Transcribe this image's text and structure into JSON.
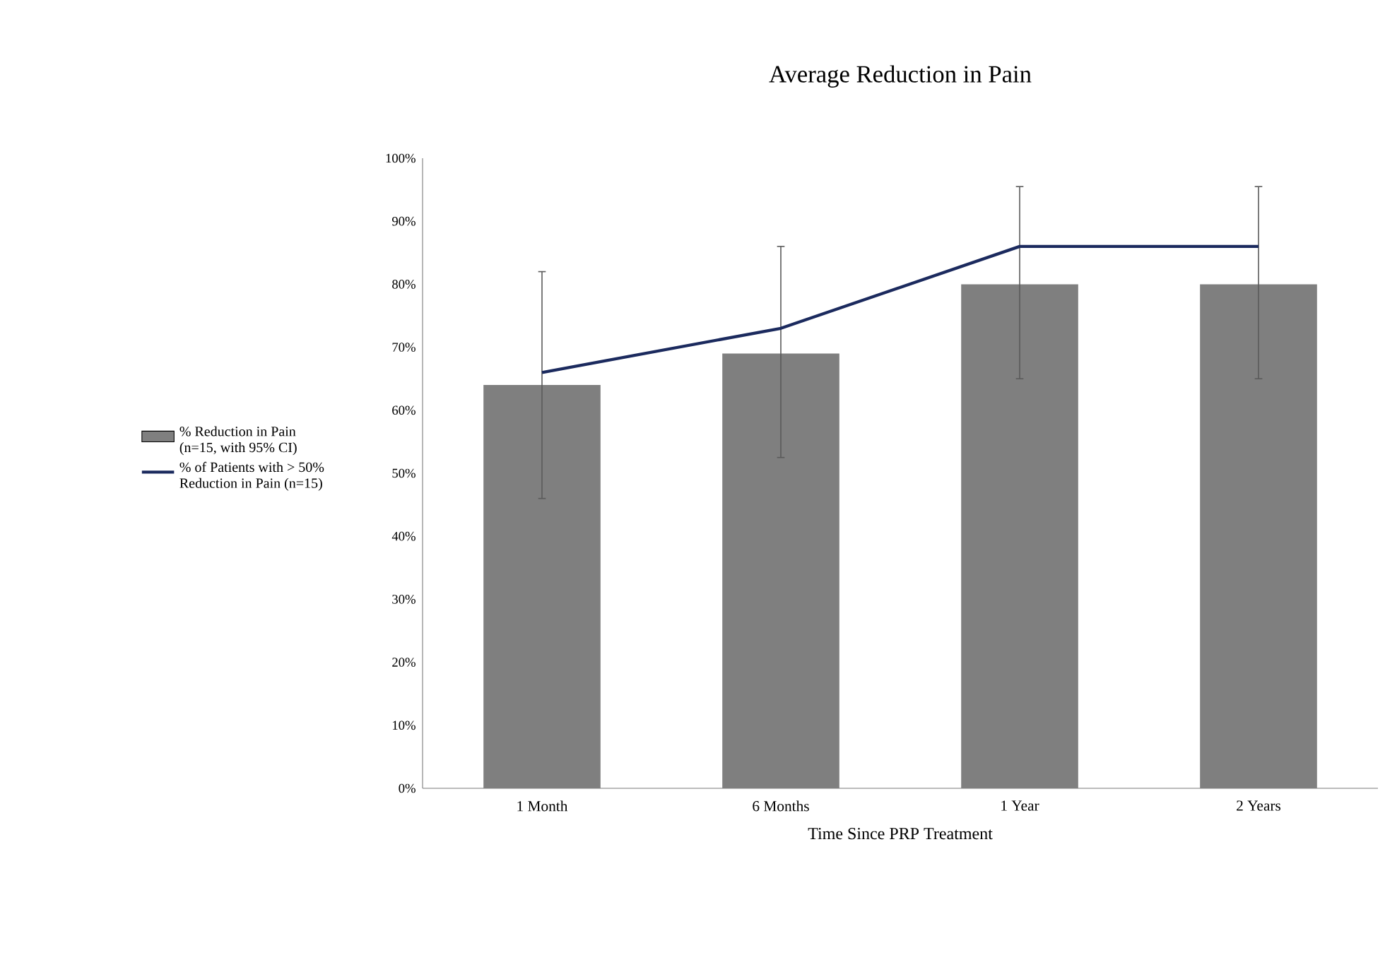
{
  "chart_data": {
    "type": "bar",
    "title": "Average Reduction in Pain",
    "xlabel": "Time Since PRP Treatment",
    "categories": [
      "1 Month",
      "6 Months",
      "1 Year",
      "2 Years"
    ],
    "series": [
      {
        "name": "% Reduction in Pain (n=15, with 95% CI)",
        "type": "bar",
        "color": "#7f7f7f",
        "values": [
          64,
          69,
          80,
          80
        ],
        "errors": [
          [
            46,
            82
          ],
          [
            52.5,
            86
          ],
          [
            65,
            95.5
          ],
          [
            65,
            95.5
          ]
        ]
      },
      {
        "name": "% of Patients with > 50% Reduction in Pain (n=15)",
        "type": "line",
        "color": "#1b2a5e",
        "values": [
          66,
          73,
          86,
          86
        ]
      }
    ],
    "ylim": [
      0,
      100
    ],
    "yticks": [
      {
        "value": 0,
        "label": "0%"
      },
      {
        "value": 10,
        "label": "10%"
      },
      {
        "value": 20,
        "label": "20%"
      },
      {
        "value": 30,
        "label": "30%"
      },
      {
        "value": 40,
        "label": "40%"
      },
      {
        "value": 50,
        "label": "50%"
      },
      {
        "value": 60,
        "label": "60%"
      },
      {
        "value": 70,
        "label": "70%"
      },
      {
        "value": 80,
        "label": "80%"
      },
      {
        "value": 90,
        "label": "90%"
      },
      {
        "value": 100,
        "label": "100%"
      }
    ],
    "grid": false,
    "legend": "left"
  }
}
